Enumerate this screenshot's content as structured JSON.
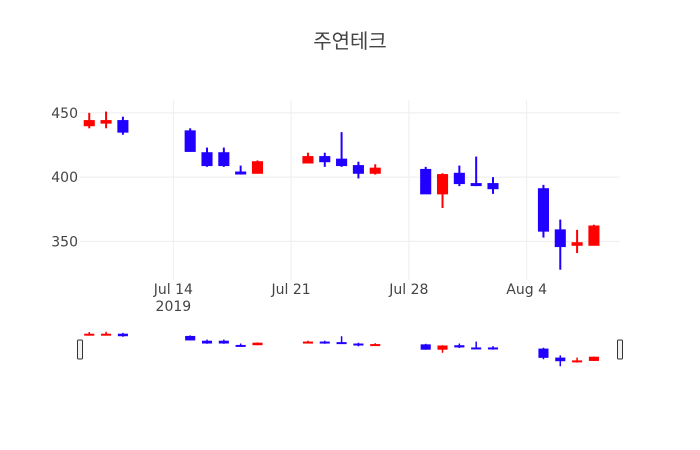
{
  "chart_data": {
    "type": "candlestick",
    "title": "주연테크",
    "colors": {
      "increasing": "#ff0000",
      "decreasing": "#2200ff",
      "grid": "#eeeeee",
      "text": "#444444"
    },
    "xaxis": {
      "type": "date",
      "tick_labels": [
        {
          "date": "2019-07-14",
          "label": "Jul 14",
          "sublabel": "2019"
        },
        {
          "date": "2019-07-21",
          "label": "Jul 21",
          "sublabel": ""
        },
        {
          "date": "2019-07-28",
          "label": "Jul 28",
          "sublabel": ""
        },
        {
          "date": "2019-08-04",
          "label": "Aug 4",
          "sublabel": ""
        }
      ],
      "range": [
        "2019-07-08",
        "2019-08-09"
      ],
      "rangeslider": true
    },
    "yaxis": {
      "range": [
        320,
        460
      ],
      "tick_values": [
        350,
        400,
        450
      ]
    },
    "candles": [
      {
        "date": "2019-07-09",
        "open": 440,
        "high": 450,
        "low": 438,
        "close": 444
      },
      {
        "date": "2019-07-10",
        "open": 442,
        "high": 451,
        "low": 438,
        "close": 444
      },
      {
        "date": "2019-07-11",
        "open": 444,
        "high": 447,
        "low": 433,
        "close": 435
      },
      {
        "date": "2019-07-15",
        "open": 436,
        "high": 438,
        "low": 420,
        "close": 420
      },
      {
        "date": "2019-07-16",
        "open": 419,
        "high": 423,
        "low": 408,
        "close": 409
      },
      {
        "date": "2019-07-17",
        "open": 419,
        "high": 423,
        "low": 408,
        "close": 409
      },
      {
        "date": "2019-07-18",
        "open": 404,
        "high": 409,
        "low": 402,
        "close": 403
      },
      {
        "date": "2019-07-19",
        "open": 403,
        "high": 413,
        "low": 403,
        "close": 412
      },
      {
        "date": "2019-07-22",
        "open": 411,
        "high": 419,
        "low": 411,
        "close": 416
      },
      {
        "date": "2019-07-23",
        "open": 416,
        "high": 419,
        "low": 408,
        "close": 412
      },
      {
        "date": "2019-07-24",
        "open": 414,
        "high": 435,
        "low": 408,
        "close": 409
      },
      {
        "date": "2019-07-25",
        "open": 409,
        "high": 412,
        "low": 399,
        "close": 403
      },
      {
        "date": "2019-07-26",
        "open": 403,
        "high": 410,
        "low": 402,
        "close": 407
      },
      {
        "date": "2019-07-29",
        "open": 406,
        "high": 408,
        "low": 387,
        "close": 387
      },
      {
        "date": "2019-07-30",
        "open": 387,
        "high": 403,
        "low": 376,
        "close": 402
      },
      {
        "date": "2019-07-31",
        "open": 403,
        "high": 409,
        "low": 393,
        "close": 395
      },
      {
        "date": "2019-08-01",
        "open": 395,
        "high": 416,
        "low": 393,
        "close": 394
      },
      {
        "date": "2019-08-02",
        "open": 395,
        "high": 400,
        "low": 387,
        "close": 391
      },
      {
        "date": "2019-08-05",
        "open": 391,
        "high": 394,
        "low": 353,
        "close": 358
      },
      {
        "date": "2019-08-06",
        "open": 359,
        "high": 367,
        "low": 328,
        "close": 346
      },
      {
        "date": "2019-08-07",
        "open": 347,
        "high": 359,
        "low": 341,
        "close": 349
      },
      {
        "date": "2019-08-08",
        "open": 347,
        "high": 363,
        "low": 347,
        "close": 362
      }
    ]
  }
}
